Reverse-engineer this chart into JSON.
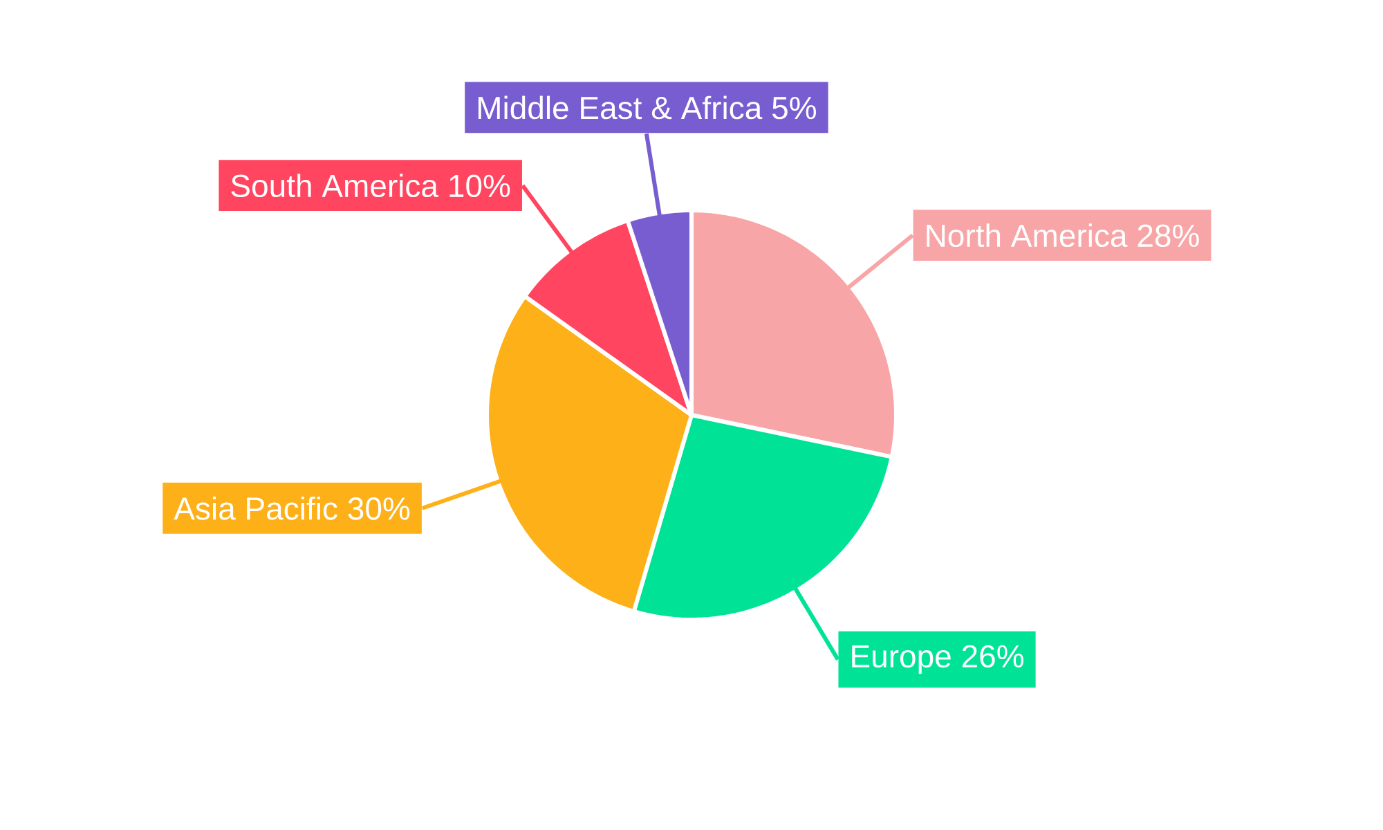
{
  "chart_data": {
    "type": "pie",
    "categories": [
      "North America",
      "Europe",
      "Asia Pacific",
      "South America",
      "Middle East & Africa"
    ],
    "values": [
      28,
      26,
      30,
      10,
      5
    ],
    "value_labels": [
      "28%",
      "26%",
      "30%",
      "10%",
      "5%"
    ],
    "colors": [
      "#f8a5a7",
      "#00e396",
      "#feb019",
      "#ff4560",
      "#775dd0"
    ]
  }
}
